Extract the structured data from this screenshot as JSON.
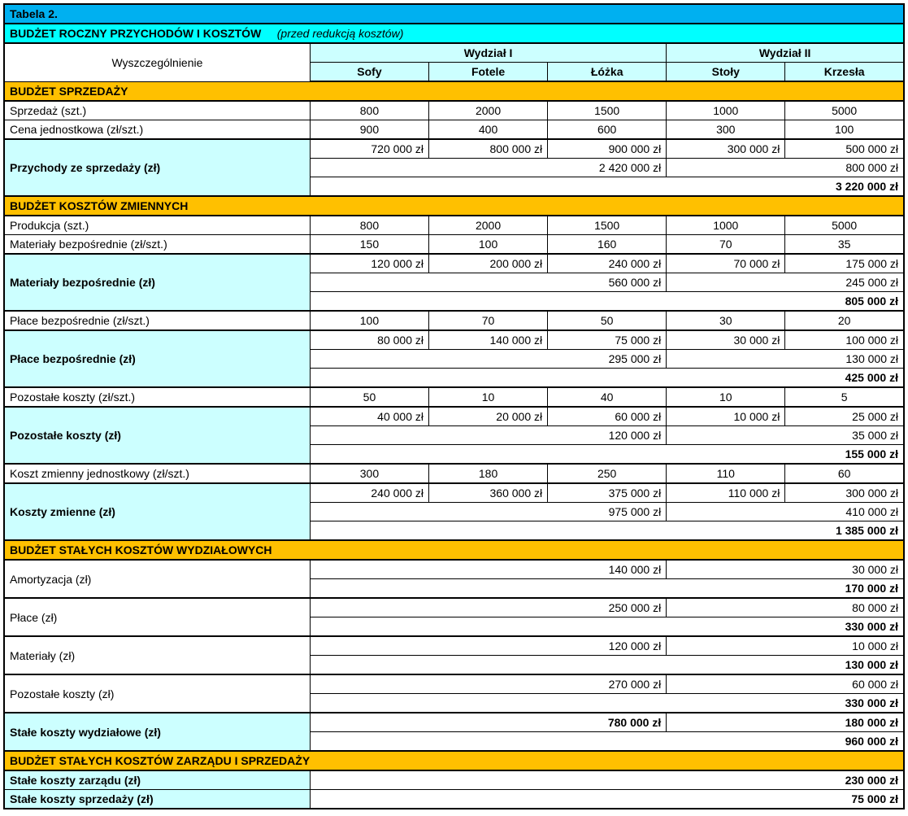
{
  "type": "table",
  "colors": {
    "title_bg": "#00b0f0",
    "subtitle_bg": "#00ffff",
    "header_bg": "#ccffff",
    "section_bg": "#ffc000",
    "highlight_bg": "#ccffff",
    "border": "#000000",
    "text": "#000000",
    "background": "#ffffff"
  },
  "typography": {
    "font_family": "Arial",
    "base_size_pt": 10,
    "bold_headers": true
  },
  "title": "Tabela 2.",
  "subtitle_main": "BUDŻET ROCZNY PRZYCHODÓW I KOSZTÓW",
  "subtitle_paren": "(przed redukcją kosztów)",
  "spec_label": "Wyszczególnienie",
  "divisions": [
    {
      "name": "Wydział I",
      "products": [
        "Sofy",
        "Fotele",
        "Łóżka"
      ]
    },
    {
      "name": "Wydział II",
      "products": [
        "Stoły",
        "Krzesła"
      ]
    }
  ],
  "sections": {
    "sales": {
      "header": "BUDŻET SPRZEDAŻY",
      "qty_label": "Sprzedaż (szt.)",
      "qty": [
        "800",
        "2000",
        "1500",
        "1000",
        "5000"
      ],
      "price_label": "Cena jednostkowa (zł/szt.)",
      "price": [
        "900",
        "400",
        "600",
        "300",
        "100"
      ],
      "rev_label": "Przychody ze sprzedaży (zł)",
      "rev_per": [
        "720 000 zł",
        "800 000 zł",
        "900 000 zł",
        "300 000 zł",
        "500 000 zł"
      ],
      "rev_div": [
        "2 420 000 zł",
        "800 000 zł"
      ],
      "rev_total": "3 220 000 zł"
    },
    "var": {
      "header": "BUDŻET KOSZTÓW ZMIENNYCH",
      "prod_label": "Produkcja (szt.)",
      "prod": [
        "800",
        "2000",
        "1500",
        "1000",
        "5000"
      ],
      "mat_unit_label": "Materiały bezpośrednie (zł/szt.)",
      "mat_unit": [
        "150",
        "100",
        "160",
        "70",
        "35"
      ],
      "mat_label": "Materiały bezpośrednie (zł)",
      "mat_per": [
        "120 000 zł",
        "200 000 zł",
        "240 000 zł",
        "70 000 zł",
        "175 000 zł"
      ],
      "mat_div": [
        "560 000 zł",
        "245 000 zł"
      ],
      "mat_total": "805 000 zł",
      "wage_unit_label": "Płace bezpośrednie (zł/szt.)",
      "wage_unit": [
        "100",
        "70",
        "50",
        "30",
        "20"
      ],
      "wage_label": "Płace bezpośrednie (zł)",
      "wage_per": [
        "80 000 zł",
        "140 000 zł",
        "75 000 zł",
        "30 000 zł",
        "100 000 zł"
      ],
      "wage_div": [
        "295 000 zł",
        "130 000 zł"
      ],
      "wage_total": "425 000 zł",
      "other_unit_label": "Pozostałe koszty (zł/szt.)",
      "other_unit": [
        "50",
        "10",
        "40",
        "10",
        "5"
      ],
      "other_label": "Pozostałe koszty (zł)",
      "other_per": [
        "40 000 zł",
        "20 000 zł",
        "60 000 zł",
        "10 000 zł",
        "25 000 zł"
      ],
      "other_div": [
        "120 000 zł",
        "35 000 zł"
      ],
      "other_total": "155 000 zł",
      "uvc_label": "Koszt zmienny jednostkowy (zł/szt.)",
      "uvc": [
        "300",
        "180",
        "250",
        "110",
        "60"
      ],
      "vc_label": "Koszty zmienne (zł)",
      "vc_per": [
        "240 000 zł",
        "360 000 zł",
        "375 000 zł",
        "110 000 zł",
        "300 000 zł"
      ],
      "vc_div": [
        "975 000 zł",
        "410 000 zł"
      ],
      "vc_total": "1 385 000 zł"
    },
    "fixed": {
      "header": "BUDŻET STAŁYCH KOSZTÓW WYDZIAŁOWYCH",
      "amort_label": "Amortyzacja (zł)",
      "amort_div": [
        "140 000 zł",
        "30 000 zł"
      ],
      "amort_total": "170 000 zł",
      "wage_label": "Płace (zł)",
      "wage_div": [
        "250 000 zł",
        "80 000 zł"
      ],
      "wage_total": "330 000 zł",
      "mat_label": "Materiały (zł)",
      "mat_div": [
        "120 000 zł",
        "10 000 zł"
      ],
      "mat_total": "130 000 zł",
      "other_label": "Pozostałe koszty (zł)",
      "other_div": [
        "270 000 zł",
        "60 000 zł"
      ],
      "other_total": "330 000 zł",
      "sum_label": "Stałe koszty wydziałowe (zł)",
      "sum_div": [
        "780 000 zł",
        "180 000 zł"
      ],
      "sum_total": "960 000 zł"
    },
    "mgmt": {
      "header": "BUDŻET STAŁYCH KOSZTÓW ZARZĄDU I SPRZEDAŻY",
      "mgmt_label": "Stałe koszty zarządu (zł)",
      "mgmt_val": "230 000 zł",
      "sales_label": "Stałe koszty sprzedaży (zł)",
      "sales_val": "75 000 zł"
    }
  }
}
